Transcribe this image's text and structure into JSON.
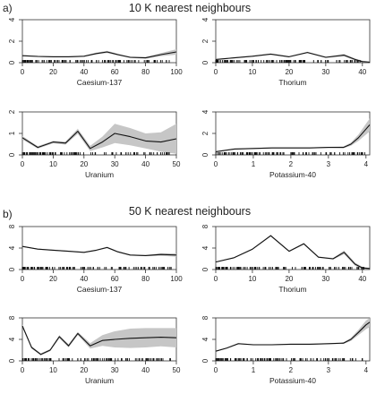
{
  "figure": {
    "sections": [
      {
        "label": "a)",
        "title": "10 K nearest neighbours"
      },
      {
        "label": "b)",
        "title": "50 K nearest neighbours"
      }
    ]
  },
  "chart_data": [
    {
      "section": "a)",
      "type": "line",
      "xlabel": "Caesium-137",
      "xlim": [
        0,
        100
      ],
      "ylim": [
        0,
        4
      ],
      "xticks": [
        0,
        20,
        40,
        60,
        80,
        100
      ],
      "yticks": [
        0,
        2,
        4
      ],
      "series": [
        {
          "x": [
            0,
            10,
            20,
            30,
            40,
            48,
            55,
            62,
            70,
            80,
            90,
            100
          ],
          "values": [
            0.65,
            0.58,
            0.55,
            0.55,
            0.6,
            0.85,
            1.0,
            0.75,
            0.5,
            0.45,
            0.75,
            1.0
          ],
          "band": [
            0.06,
            0.05,
            0.05,
            0.05,
            0.05,
            0.08,
            0.1,
            0.08,
            0.06,
            0.08,
            0.15,
            0.25
          ]
        }
      ]
    },
    {
      "section": "a)",
      "type": "line",
      "xlabel": "Thorium",
      "xlim": [
        0,
        42
      ],
      "ylim": [
        0,
        4
      ],
      "xticks": [
        0,
        10,
        20,
        30,
        40
      ],
      "yticks": [
        0,
        2,
        4
      ],
      "series": [
        {
          "x": [
            0,
            5,
            10,
            15,
            20,
            25,
            30,
            35,
            38,
            40,
            42
          ],
          "values": [
            0.3,
            0.45,
            0.6,
            0.8,
            0.55,
            0.95,
            0.5,
            0.7,
            0.3,
            0.1,
            0.05
          ],
          "band": [
            0.05,
            0.05,
            0.05,
            0.06,
            0.05,
            0.07,
            0.06,
            0.12,
            0.1,
            0.08,
            0.05
          ]
        }
      ]
    },
    {
      "section": "a)",
      "type": "line",
      "xlabel": "Uranium",
      "xlim": [
        0,
        50
      ],
      "ylim": [
        0,
        2
      ],
      "xticks": [
        0,
        10,
        20,
        30,
        40,
        50
      ],
      "yticks": [
        0,
        1,
        2
      ],
      "series": [
        {
          "x": [
            0,
            5,
            10,
            14,
            18,
            22,
            26,
            30,
            35,
            40,
            45,
            50
          ],
          "values": [
            0.8,
            0.35,
            0.6,
            0.55,
            1.1,
            0.3,
            0.6,
            1.0,
            0.85,
            0.65,
            0.6,
            0.75
          ],
          "band": [
            0.08,
            0.06,
            0.06,
            0.07,
            0.12,
            0.12,
            0.25,
            0.45,
            0.4,
            0.35,
            0.45,
            0.7
          ]
        }
      ]
    },
    {
      "section": "a)",
      "type": "line",
      "xlabel": "Potassium-40",
      "xlim": [
        0,
        4.1
      ],
      "ylim": [
        0,
        4
      ],
      "xticks": [
        0,
        1,
        2,
        3,
        4
      ],
      "yticks": [
        0,
        2,
        4
      ],
      "series": [
        {
          "x": [
            0,
            0.5,
            1,
            1.5,
            2,
            2.5,
            3,
            3.4,
            3.6,
            3.8,
            4.0,
            4.1
          ],
          "values": [
            0.3,
            0.55,
            0.6,
            0.65,
            0.65,
            0.65,
            0.7,
            0.7,
            1.0,
            1.6,
            2.4,
            2.8
          ],
          "band": [
            0.05,
            0.05,
            0.05,
            0.05,
            0.05,
            0.05,
            0.05,
            0.08,
            0.15,
            0.3,
            0.5,
            0.6
          ]
        }
      ]
    },
    {
      "section": "b)",
      "type": "line",
      "xlabel": "Caesium-137",
      "xlim": [
        0,
        100
      ],
      "ylim": [
        0,
        8
      ],
      "xticks": [
        0,
        20,
        40,
        60,
        80,
        100
      ],
      "yticks": [
        0,
        4,
        8
      ],
      "series": [
        {
          "x": [
            0,
            10,
            20,
            30,
            40,
            48,
            55,
            62,
            70,
            80,
            90,
            100
          ],
          "values": [
            4.3,
            3.8,
            3.6,
            3.4,
            3.2,
            3.6,
            4.1,
            3.3,
            2.7,
            2.6,
            2.8,
            2.7
          ],
          "band": [
            0.1,
            0.1,
            0.1,
            0.1,
            0.1,
            0.12,
            0.15,
            0.12,
            0.1,
            0.12,
            0.25,
            0.3
          ]
        }
      ]
    },
    {
      "section": "b)",
      "type": "line",
      "xlabel": "Thorium",
      "xlim": [
        0,
        42
      ],
      "ylim": [
        0,
        8
      ],
      "xticks": [
        0,
        10,
        20,
        30,
        40
      ],
      "yticks": [
        0,
        4,
        8
      ],
      "series": [
        {
          "x": [
            0,
            5,
            10,
            15,
            20,
            24,
            28,
            32,
            35,
            38,
            40,
            42
          ],
          "values": [
            1.4,
            2.2,
            3.8,
            6.3,
            3.4,
            4.8,
            2.3,
            2.0,
            3.2,
            1.0,
            0.3,
            0.2
          ],
          "band": [
            0.1,
            0.1,
            0.12,
            0.15,
            0.12,
            0.15,
            0.12,
            0.15,
            0.35,
            0.3,
            0.2,
            0.1
          ]
        }
      ]
    },
    {
      "section": "b)",
      "type": "line",
      "xlabel": "Uranium",
      "xlim": [
        0,
        50
      ],
      "ylim": [
        0,
        8
      ],
      "xticks": [
        0,
        10,
        20,
        30,
        40,
        50
      ],
      "yticks": [
        0,
        4,
        8
      ],
      "series": [
        {
          "x": [
            0,
            3,
            6,
            9,
            12,
            15,
            18,
            22,
            26,
            30,
            35,
            40,
            45,
            50
          ],
          "values": [
            6.5,
            2.5,
            1.2,
            2.0,
            4.5,
            2.8,
            5.1,
            2.8,
            3.8,
            4.0,
            4.2,
            4.3,
            4.4,
            4.3
          ],
          "band": [
            0.3,
            0.2,
            0.2,
            0.2,
            0.3,
            0.3,
            0.3,
            0.5,
            1.0,
            1.5,
            1.8,
            1.8,
            1.7,
            1.8
          ]
        }
      ]
    },
    {
      "section": "b)",
      "type": "line",
      "xlabel": "Potassium-40",
      "xlim": [
        0,
        4.1
      ],
      "ylim": [
        0,
        8
      ],
      "xticks": [
        0,
        1,
        2,
        3,
        4
      ],
      "yticks": [
        0,
        4,
        8
      ],
      "series": [
        {
          "x": [
            0,
            0.3,
            0.6,
            1,
            1.5,
            2,
            2.5,
            3,
            3.4,
            3.6,
            3.8,
            4.0,
            4.1
          ],
          "values": [
            1.8,
            2.4,
            3.2,
            3.0,
            3.0,
            3.1,
            3.1,
            3.2,
            3.3,
            4.0,
            5.3,
            6.7,
            7.2
          ],
          "band": [
            0.1,
            0.1,
            0.1,
            0.1,
            0.1,
            0.1,
            0.1,
            0.1,
            0.15,
            0.3,
            0.5,
            0.8,
            0.9
          ]
        }
      ]
    }
  ]
}
